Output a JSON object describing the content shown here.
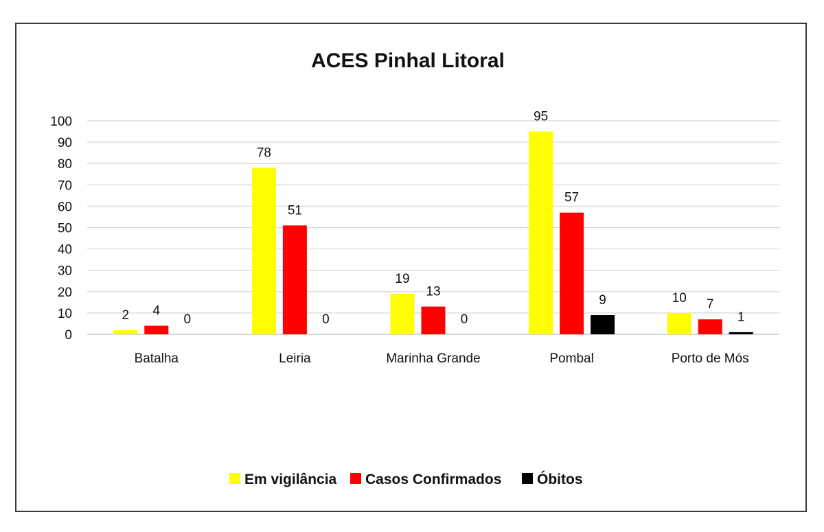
{
  "chart_data": {
    "type": "bar",
    "title": "ACES Pinhal Litoral",
    "categories": [
      "Batalha",
      "Leiria",
      "Marinha Grande",
      "Pombal",
      "Porto de Mós"
    ],
    "series": [
      {
        "name": "Em vigilância",
        "color": "#ffff00",
        "values": [
          2,
          78,
          19,
          95,
          10
        ]
      },
      {
        "name": "Casos Confirmados",
        "color": "#ff0000",
        "values": [
          4,
          51,
          13,
          57,
          7
        ]
      },
      {
        "name": "Óbitos",
        "color": "#000000",
        "values": [
          0,
          0,
          0,
          9,
          1
        ]
      }
    ],
    "ylim": [
      0,
      100
    ],
    "yticks": [
      0,
      10,
      20,
      30,
      40,
      50,
      60,
      70,
      80,
      90,
      100
    ],
    "grid": true,
    "legend_position": "bottom"
  }
}
